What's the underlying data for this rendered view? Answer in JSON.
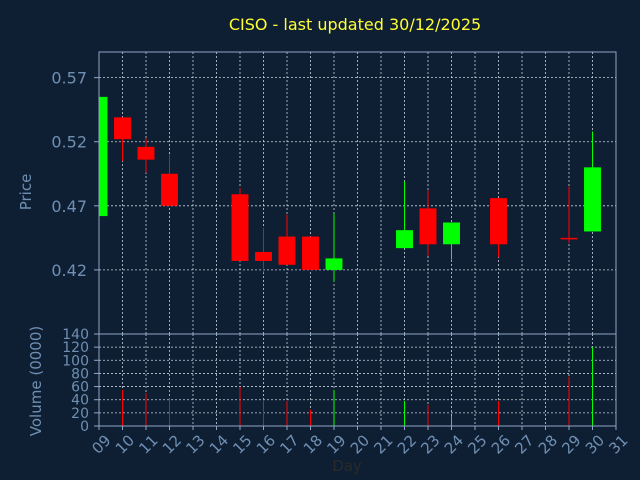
{
  "chart_data": {
    "type": "candlestick",
    "title": "CISO - last updated 30/12/2025",
    "price_panel": {
      "ylabel": "Price",
      "ylim": [
        0.37,
        0.59
      ],
      "yticks": [
        "0.57",
        "0.52",
        "0.47",
        "0.42"
      ],
      "ytick_values": [
        0.57,
        0.52,
        0.47,
        0.42
      ]
    },
    "volume_panel": {
      "ylabel": "Volume (0000)",
      "ylim": [
        0,
        140
      ],
      "yticks": [
        "140",
        "120",
        "100",
        "80",
        "60",
        "40",
        "20",
        "0"
      ],
      "ytick_values": [
        140,
        120,
        100,
        80,
        60,
        40,
        20,
        0
      ]
    },
    "xlabel": "Day",
    "xlim": [
      9,
      31
    ],
    "xticks": [
      "09",
      "10",
      "11",
      "12",
      "13",
      "14",
      "15",
      "16",
      "17",
      "18",
      "19",
      "20",
      "21",
      "22",
      "23",
      "24",
      "25",
      "26",
      "27",
      "28",
      "29",
      "30",
      "31"
    ],
    "candles": [
      {
        "day": 9,
        "open": 0.462,
        "close": 0.555,
        "high": 0.555,
        "low": 0.462,
        "volume": 0
      },
      {
        "day": 10,
        "open": 0.539,
        "close": 0.522,
        "high": 0.539,
        "low": 0.505,
        "volume": 55
      },
      {
        "day": 11,
        "open": 0.516,
        "close": 0.506,
        "high": 0.523,
        "low": 0.496,
        "volume": 50
      },
      {
        "day": 12,
        "open": 0.495,
        "close": 0.47,
        "high": 0.51,
        "low": 0.47,
        "volume": 42
      },
      {
        "day": 15,
        "open": 0.479,
        "close": 0.427,
        "high": 0.484,
        "low": 0.427,
        "volume": 60
      },
      {
        "day": 16,
        "open": 0.434,
        "close": 0.427,
        "high": 0.453,
        "low": 0.418,
        "volume": 40
      },
      {
        "day": 17,
        "open": 0.446,
        "close": 0.424,
        "high": 0.463,
        "low": 0.424,
        "volume": 38
      },
      {
        "day": 18,
        "open": 0.446,
        "close": 0.42,
        "high": 0.446,
        "low": 0.42,
        "volume": 25
      },
      {
        "day": 19,
        "open": 0.42,
        "close": 0.429,
        "high": 0.464,
        "low": 0.411,
        "volume": 55
      },
      {
        "day": 22,
        "open": 0.437,
        "close": 0.451,
        "high": 0.489,
        "low": 0.437,
        "volume": 38
      },
      {
        "day": 23,
        "open": 0.468,
        "close": 0.44,
        "high": 0.482,
        "low": 0.431,
        "volume": 32
      },
      {
        "day": 24,
        "open": 0.44,
        "close": 0.457,
        "high": 0.457,
        "low": 0.428,
        "volume": 15
      },
      {
        "day": 26,
        "open": 0.476,
        "close": 0.44,
        "high": 0.476,
        "low": 0.43,
        "volume": 38
      },
      {
        "day": 29,
        "open": 0.445,
        "close": 0.444,
        "high": 0.485,
        "low": 0.441,
        "volume": 75
      },
      {
        "day": 30,
        "open": 0.45,
        "close": 0.5,
        "high": 0.528,
        "low": 0.45,
        "volume": 120
      }
    ],
    "grid": true,
    "colors": {
      "background": "#0f1f33",
      "plot_border": "#8ea6c5",
      "grid": "#c9d2dc",
      "axis_text": "#6f8fb3",
      "title": "#ffff33",
      "up": "#00ff00",
      "down": "#ff0000"
    }
  }
}
